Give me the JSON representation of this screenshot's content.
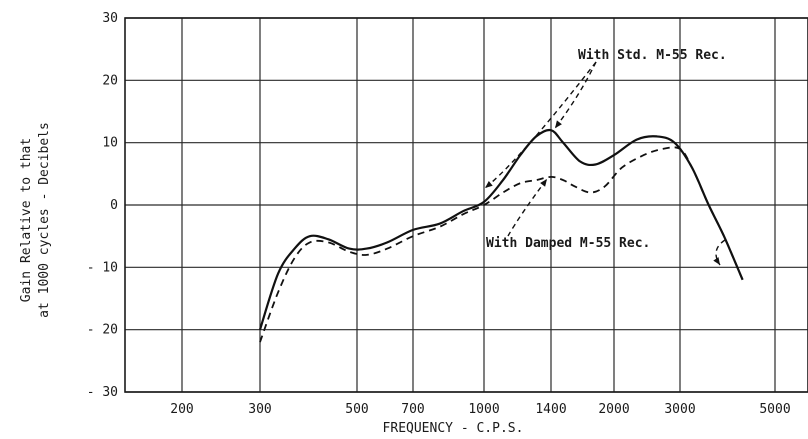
{
  "chart_data": {
    "type": "line",
    "xlabel": "FREQUENCY - C.P.S.",
    "ylabel_lines": [
      "Gain Relative to that",
      "at 1000 cycles - Decibels"
    ],
    "x_scale": "log",
    "x_ticks": [
      200,
      300,
      500,
      700,
      1000,
      1400,
      2000,
      3000,
      5000
    ],
    "x_tick_labels": [
      "200",
      "300",
      "500",
      "700",
      "1000",
      "1400",
      "2000",
      "3000",
      "5000"
    ],
    "y_ticks": [
      30,
      20,
      10,
      0,
      -10,
      -20,
      -30
    ],
    "y_tick_labels": [
      "30",
      "20",
      "10",
      "0",
      "- 10",
      "- 20",
      "- 30"
    ],
    "ylim": [
      -30,
      30
    ],
    "grid": true,
    "series": [
      {
        "name": "With Std. M-55 Rec.",
        "style": "solid",
        "x": [
          300,
          330,
          360,
          390,
          430,
          480,
          530,
          600,
          700,
          800,
          900,
          1000,
          1100,
          1200,
          1300,
          1400,
          1500,
          1650,
          1800,
          2000,
          2300,
          2600,
          2900,
          3200,
          3500,
          3800,
          4200
        ],
        "y": [
          -20,
          -11,
          -7,
          -5,
          -5.5,
          -7,
          -7,
          -6,
          -4,
          -3,
          -1,
          0.5,
          4,
          8,
          11,
          12,
          10,
          7,
          6.5,
          8,
          10.5,
          11,
          10,
          6,
          0,
          -5,
          -12
        ]
      },
      {
        "name": "With Damped M-55 Rec.",
        "style": "dashed",
        "x": [
          300,
          330,
          360,
          390,
          430,
          480,
          530,
          600,
          700,
          800,
          900,
          1000,
          1100,
          1200,
          1300,
          1400,
          1500,
          1600,
          1750,
          1900,
          2100,
          2400,
          2700,
          3000,
          3200,
          3500,
          3800,
          4200
        ],
        "y": [
          -22,
          -14,
          -8.5,
          -6,
          -6,
          -7.5,
          -8,
          -7,
          -5,
          -3.5,
          -1.5,
          0,
          2,
          3.5,
          4,
          4.5,
          4,
          3,
          2,
          3,
          6,
          8,
          9,
          9,
          6,
          0,
          -5,
          -12
        ]
      }
    ],
    "annotations": [
      {
        "text": "With Std. M-55 Rec.",
        "points_to": {
          "x": 1400,
          "y": 12
        }
      },
      {
        "text": "With Damped M-55 Rec.",
        "points_to": {
          "x": 1400,
          "y": 4.5
        }
      }
    ]
  }
}
